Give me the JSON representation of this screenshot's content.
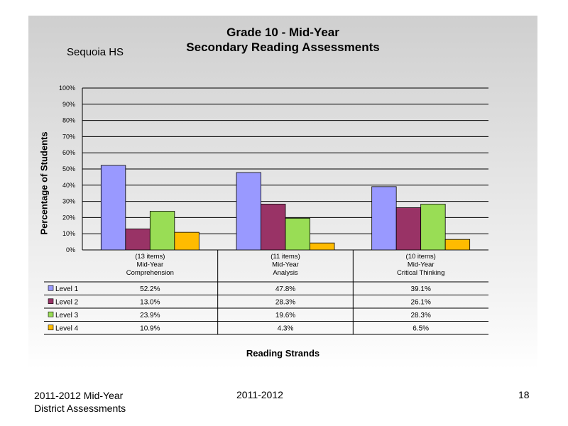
{
  "slide": {
    "title_line1": "Grade 10 - Mid-Year",
    "title_line2": "Secondary Reading Assessments",
    "school": "Sequoia HS"
  },
  "footer": {
    "left_line1": "2011-2012  Mid-Year",
    "left_line2": "District Assessments",
    "center": "2011-2012",
    "page_number": "18"
  },
  "chart_data": {
    "type": "bar",
    "title": "Grade 10 - Mid-Year Secondary Reading Assessments",
    "xlabel": "Reading Strands",
    "ylabel": "Percentage of Students",
    "ylim": [
      0,
      100
    ],
    "yticks": [
      "0%",
      "10%",
      "20%",
      "30%",
      "40%",
      "50%",
      "60%",
      "70%",
      "80%",
      "90%",
      "100%"
    ],
    "grid": true,
    "legend_placement": "data-table",
    "categories": [
      [
        "(13 items)",
        "Mid-Year",
        "Comprehension"
      ],
      [
        "(11 items)",
        "Mid-Year",
        "Analysis"
      ],
      [
        "(10 items)",
        "Mid-Year",
        "Critical Thinking"
      ]
    ],
    "series": [
      {
        "name": "Level 1",
        "color": "#9999ff",
        "values": [
          52.2,
          47.8,
          39.1
        ],
        "labels": [
          "52.2%",
          "47.8%",
          "39.1%"
        ]
      },
      {
        "name": "Level 2",
        "color": "#993366",
        "values": [
          13.0,
          28.3,
          26.1
        ],
        "labels": [
          "13.0%",
          "28.3%",
          "26.1%"
        ]
      },
      {
        "name": "Level 3",
        "color": "#99dd55",
        "values": [
          23.9,
          19.6,
          28.3
        ],
        "labels": [
          "23.9%",
          "19.6%",
          "28.3%"
        ]
      },
      {
        "name": "Level 4",
        "color": "#ffbb00",
        "values": [
          10.9,
          4.3,
          6.5
        ],
        "labels": [
          "10.9%",
          "4.3%",
          "6.5%"
        ]
      }
    ]
  }
}
